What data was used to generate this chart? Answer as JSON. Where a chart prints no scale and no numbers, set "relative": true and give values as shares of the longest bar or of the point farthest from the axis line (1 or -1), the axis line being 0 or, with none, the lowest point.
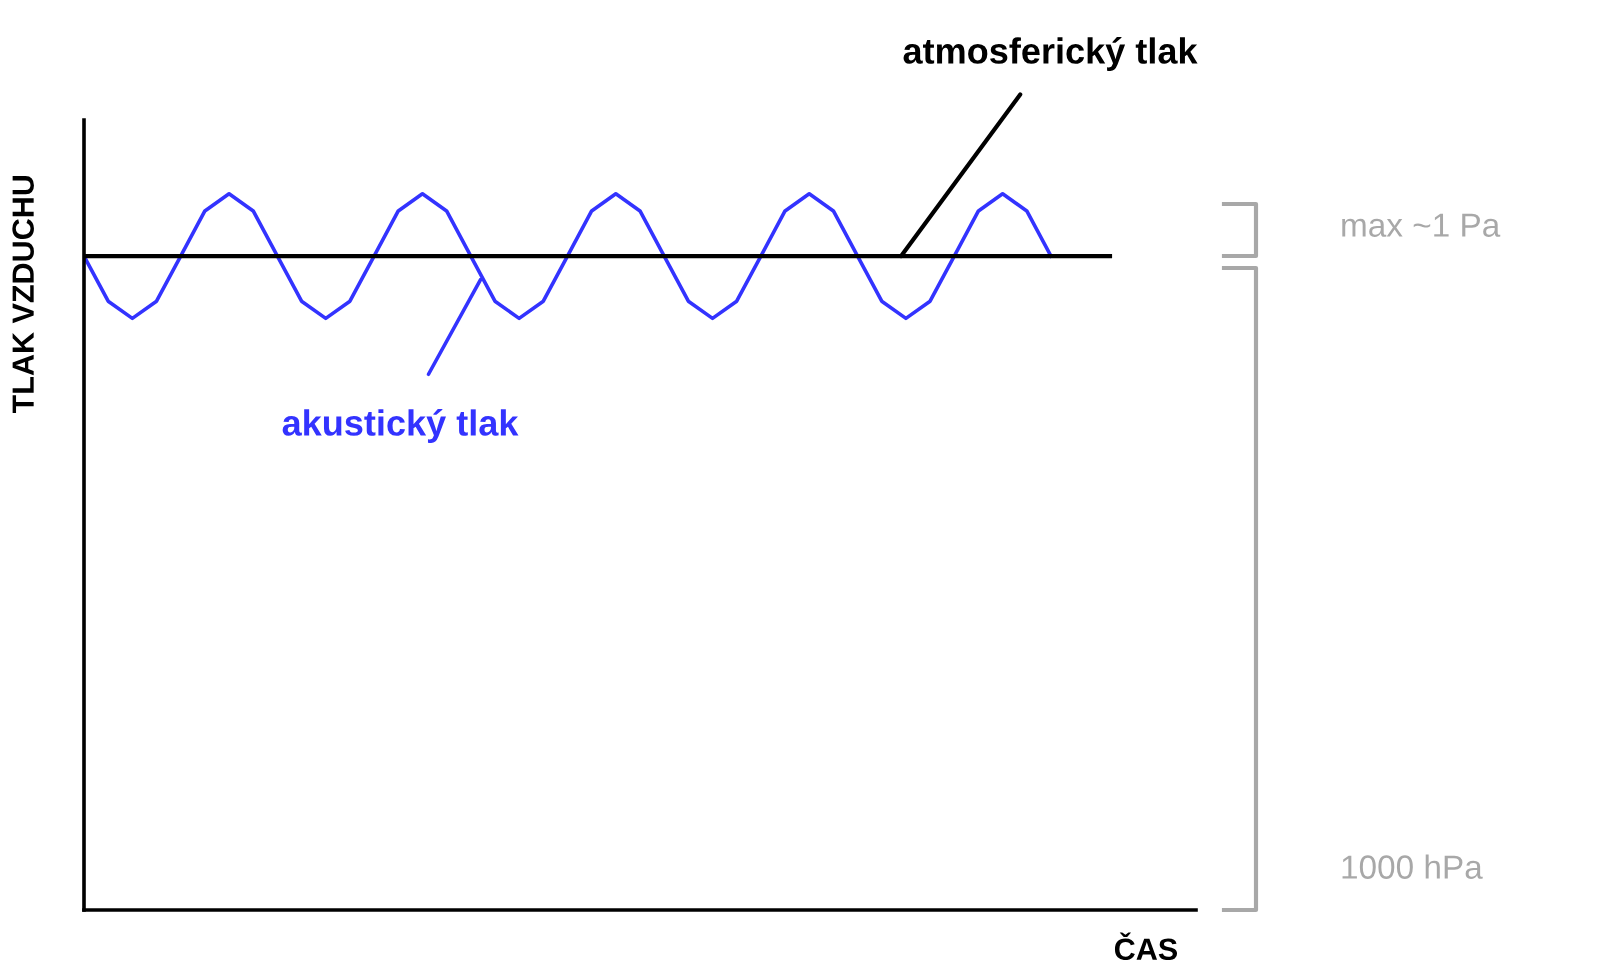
{
  "chart_data": {
    "type": "line",
    "relative": true,
    "ylabel": "TLAK VZDUCHU",
    "xlabel": "ČAS",
    "categories": [
      null,
      null,
      null,
      null,
      null,
      null,
      null,
      null,
      null,
      null,
      null,
      null,
      null,
      null,
      null,
      null,
      null,
      null,
      null,
      null,
      null,
      null,
      null,
      null,
      null,
      null,
      null,
      null,
      null,
      null,
      null,
      null,
      null,
      null,
      null,
      null,
      null,
      null,
      null,
      null,
      null
    ],
    "series": [
      {
        "color": "#3333ff",
        "values": [
          0.913,
          0.85,
          0.826,
          0.85,
          0.913,
          0.976,
          1,
          0.976,
          0.913,
          0.85,
          0.826,
          0.85,
          0.913,
          0.976,
          1,
          0.976,
          0.913,
          0.85,
          0.826,
          0.85,
          0.913,
          0.976,
          1,
          0.976,
          0.913,
          0.85,
          0.826,
          0.85,
          0.913,
          0.976,
          1,
          0.976,
          0.913,
          0.85,
          0.826,
          0.85,
          0.913,
          0.976,
          1,
          0.976,
          0.913
        ]
      }
    ],
    "ref_lines": [
      {
        "axis": "y",
        "value": 0.913,
        "label": "atmosferický tlak",
        "color": "#000000"
      }
    ],
    "annotations": [
      "akustický tlak",
      "max ~1 Pa",
      "1000 hPa"
    ],
    "legend": false,
    "marker": "none",
    "line_style": "solid"
  }
}
